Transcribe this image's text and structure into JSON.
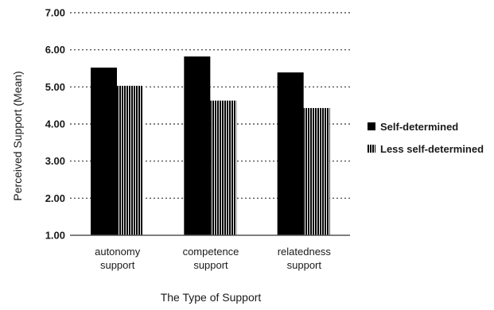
{
  "chart_data": {
    "type": "bar",
    "categories": [
      [
        "autonomy",
        "support"
      ],
      [
        "competence",
        "support"
      ],
      [
        "relatedness",
        "support"
      ]
    ],
    "series": [
      {
        "name": "Self-determined",
        "values": [
          5.52,
          5.82,
          5.39
        ],
        "fill": "#000000",
        "pattern": "solid"
      },
      {
        "name": "Less self-determined",
        "values": [
          5.03,
          4.63,
          4.43
        ],
        "fill": "#000000",
        "pattern": "vertical-stripes"
      }
    ],
    "ylim": [
      1.0,
      7.0
    ],
    "yticks": [
      "1.00",
      "2.00",
      "3.00",
      "4.00",
      "5.00",
      "6.00",
      "7.00"
    ],
    "ylabel": "Perceived Support (Mean)",
    "xlabel": "The Type of Support",
    "grid": true,
    "grid_style": "dotted",
    "legend_position": "right"
  }
}
